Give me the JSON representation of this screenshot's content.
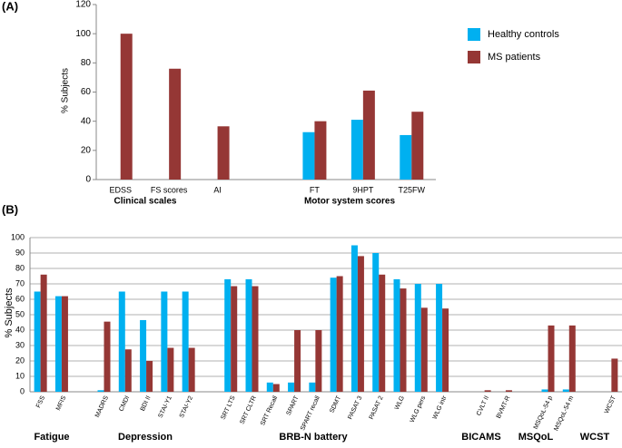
{
  "chart_data": [
    {
      "type": "bar",
      "panel": "(A)",
      "y_label": "% Subjects",
      "categories": [
        "EDSS",
        "FS scores",
        "AI",
        null,
        "FT",
        "9HPT",
        "T25FW"
      ],
      "groups": [
        "Clinical scales",
        "Motor system scores"
      ],
      "series": [
        {
          "name": "Healthy controls",
          "color": "#00b0f0",
          "values": [
            null,
            null,
            null,
            null,
            32.5,
            41,
            30.5
          ]
        },
        {
          "name": "MS patients",
          "color": "#953735",
          "values": [
            100,
            76,
            36.5,
            null,
            40,
            61,
            46.5
          ]
        }
      ],
      "ylim": [
        0,
        120
      ],
      "yticks": [
        0,
        20,
        40,
        60,
        80,
        100,
        120
      ],
      "grid": false,
      "legend": "right"
    },
    {
      "type": "bar",
      "panel": "(B)",
      "y_label": "% Subjects",
      "categories": [
        "FSS",
        "MFIS",
        null,
        "MADRS",
        "CMDI",
        "BDI II",
        "STAI-Y1",
        "STAI-Y2",
        null,
        "SRT LTS",
        "SRT CLTR",
        "SRT Recall",
        "SPART",
        "SPART recall",
        "SDMT",
        "PASAT 3",
        "PASAT 2",
        "WLG",
        "WLG pers",
        "WLG intr",
        null,
        "CVLT II",
        "BVMT-R",
        null,
        "MSQoL-54 p",
        "MSQoL-54 m",
        null,
        "WCST"
      ],
      "groups": [
        "Fatigue",
        "Depression",
        "BRB-N battery",
        "BICAMS",
        "MSQoL",
        "WCST"
      ],
      "series": [
        {
          "name": "Healthy controls",
          "color": "#00b0f0",
          "values": [
            65,
            62,
            null,
            1,
            65,
            46.5,
            65,
            65,
            null,
            73,
            73,
            6,
            6,
            6,
            74,
            95,
            90,
            73,
            70,
            70,
            null,
            0,
            0,
            null,
            1.5,
            1.5,
            null,
            0
          ]
        },
        {
          "name": "MS patients",
          "color": "#953735",
          "values": [
            76,
            62,
            null,
            45.5,
            27.5,
            20,
            28.5,
            28.5,
            null,
            68.5,
            68.5,
            5,
            40,
            40,
            75,
            88,
            76,
            67,
            54.5,
            54,
            null,
            1,
            1,
            null,
            43,
            43,
            null,
            21.5
          ]
        }
      ],
      "ylim": [
        0,
        100
      ],
      "yticks": [
        0,
        10,
        20,
        30,
        40,
        50,
        60,
        70,
        80,
        90,
        100
      ],
      "grid": true
    }
  ]
}
